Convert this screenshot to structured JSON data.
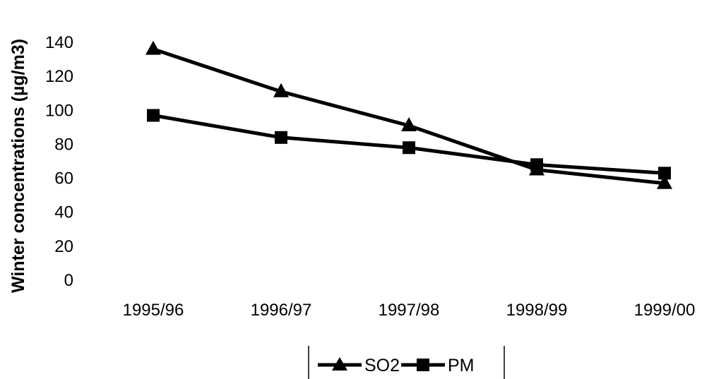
{
  "chart_data": {
    "type": "line",
    "title": "",
    "xlabel": "",
    "ylabel": "Winter concentrations (µg/m3)",
    "categories": [
      "1995/96",
      "1996/97",
      "1997/98",
      "1998/99",
      "1999/00"
    ],
    "ylim": [
      0,
      140
    ],
    "yticks": [
      0,
      20,
      40,
      60,
      80,
      100,
      120,
      140
    ],
    "grid": false,
    "legend_position": "bottom",
    "series": [
      {
        "name": "SO2",
        "marker": "triangle",
        "color": "#000000",
        "values": [
          136,
          111,
          91,
          65,
          57
        ]
      },
      {
        "name": "PM",
        "marker": "square",
        "color": "#000000",
        "values": [
          97,
          84,
          78,
          68,
          63
        ]
      }
    ]
  }
}
